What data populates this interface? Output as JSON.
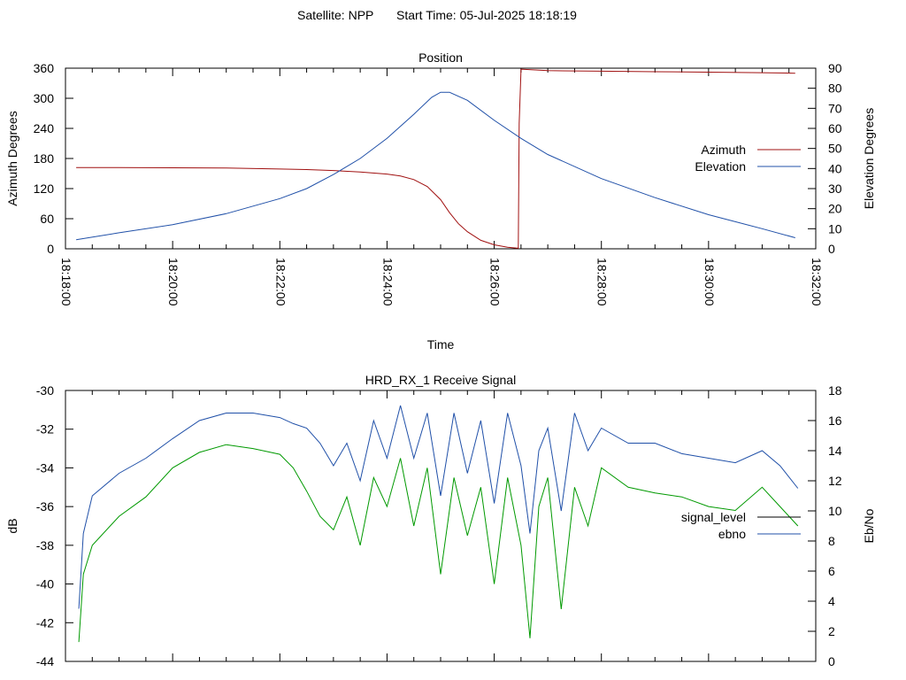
{
  "header": {
    "satellite": "Satellite: NPP",
    "start_time": "Start Time: 05-Jul-2025 18:18:19"
  },
  "colors": {
    "azimuth": "#a01010",
    "elevation": "#2050a8",
    "signal_level": "#000000",
    "signal_level_plotted": "#009900",
    "ebno": "#2050a8"
  },
  "chart_data": [
    {
      "type": "line",
      "title": "Position",
      "xlabel": "Time",
      "ylabel": "Azimuth Degrees",
      "y2label": "Elevation Degrees",
      "x_ticks": [
        "18:18:00",
        "18:20:00",
        "18:22:00",
        "18:24:00",
        "18:26:00",
        "18:28:00",
        "18:30:00",
        "18:32:00"
      ],
      "y_ticks": [
        "0",
        "60",
        "120",
        "180",
        "240",
        "300",
        "360"
      ],
      "y2_ticks": [
        "0",
        "10",
        "20",
        "30",
        "40",
        "50",
        "60",
        "70",
        "80",
        "90"
      ],
      "xlim": [
        "18:18:00",
        "18:32:00"
      ],
      "ylim": [
        0,
        360
      ],
      "y2lim": [
        0,
        90
      ],
      "legend": "right",
      "grid": false,
      "series": [
        {
          "name": "Azimuth",
          "axis": "y",
          "x": [
            "18:18:12",
            "18:19:00",
            "18:20:00",
            "18:21:00",
            "18:22:00",
            "18:22:30",
            "18:23:00",
            "18:23:30",
            "18:24:00",
            "18:24:15",
            "18:24:30",
            "18:24:45",
            "18:25:00",
            "18:25:10",
            "18:25:20",
            "18:25:30",
            "18:25:45",
            "18:26:00",
            "18:26:15",
            "18:26:27",
            "18:26:28",
            "18:26:30",
            "18:27:00",
            "18:28:00",
            "18:29:00",
            "18:30:00",
            "18:31:00",
            "18:31:37"
          ],
          "y": [
            162,
            162,
            161.5,
            161,
            159,
            158,
            156,
            153,
            149,
            145,
            138,
            124,
            98,
            72,
            50,
            34,
            17,
            8,
            3,
            1,
            250,
            358,
            355,
            354,
            353,
            352,
            351,
            350
          ]
        },
        {
          "name": "Elevation",
          "axis": "y2",
          "x": [
            "18:18:12",
            "18:19:00",
            "18:20:00",
            "18:21:00",
            "18:22:00",
            "18:22:30",
            "18:23:00",
            "18:23:30",
            "18:24:00",
            "18:24:30",
            "18:24:50",
            "18:25:00",
            "18:25:10",
            "18:25:30",
            "18:26:00",
            "18:26:30",
            "18:27:00",
            "18:28:00",
            "18:29:00",
            "18:30:00",
            "18:31:00",
            "18:31:37"
          ],
          "y": [
            4.5,
            8,
            12,
            17.5,
            25,
            30,
            37,
            45,
            55,
            67,
            75.5,
            78,
            78,
            74,
            64,
            55,
            47,
            35,
            25.5,
            17,
            10,
            5.5
          ]
        }
      ]
    },
    {
      "type": "line",
      "title": "HRD_RX_1 Receive Signal",
      "ylabel": "dB",
      "y2label": "Eb/No",
      "y_ticks": [
        "-44",
        "-42",
        "-40",
        "-38",
        "-36",
        "-34",
        "-32",
        "-30"
      ],
      "y2_ticks": [
        "0",
        "2",
        "4",
        "6",
        "8",
        "10",
        "12",
        "14",
        "16",
        "18"
      ],
      "xlim": [
        "18:18:00",
        "18:32:00"
      ],
      "ylim": [
        -44,
        -30
      ],
      "y2lim": [
        0,
        18
      ],
      "legend": "right",
      "grid": false,
      "series": [
        {
          "name": "signal_level",
          "axis": "y",
          "x": [
            "18:18:15",
            "18:18:20",
            "18:18:30",
            "18:19:00",
            "18:19:30",
            "18:20:00",
            "18:20:30",
            "18:21:00",
            "18:21:30",
            "18:22:00",
            "18:22:15",
            "18:22:30",
            "18:22:45",
            "18:23:00",
            "18:23:15",
            "18:23:30",
            "18:23:45",
            "18:24:00",
            "18:24:15",
            "18:24:30",
            "18:24:45",
            "18:25:00",
            "18:25:15",
            "18:25:30",
            "18:25:45",
            "18:26:00",
            "18:26:15",
            "18:26:30",
            "18:26:40",
            "18:26:50",
            "18:27:00",
            "18:27:15",
            "18:27:30",
            "18:27:45",
            "18:28:00",
            "18:28:30",
            "18:29:00",
            "18:29:30",
            "18:30:00",
            "18:30:30",
            "18:31:00",
            "18:31:20",
            "18:31:40"
          ],
          "y": [
            -43,
            -39.5,
            -38,
            -36.5,
            -35.5,
            -34,
            -33.2,
            -32.8,
            -33,
            -33.3,
            -34,
            -35.2,
            -36.5,
            -37.2,
            -35.5,
            -38,
            -34.5,
            -36,
            -33.5,
            -37,
            -34,
            -39.5,
            -34.5,
            -37.5,
            -35,
            -40,
            -34.5,
            -38,
            -42.8,
            -36,
            -34.5,
            -41.3,
            -35,
            -37,
            -34,
            -35,
            -35.3,
            -35.5,
            -36,
            -36.2,
            -35,
            -36,
            -37
          ]
        },
        {
          "name": "ebno",
          "axis": "y2",
          "x": [
            "18:18:15",
            "18:18:20",
            "18:18:30",
            "18:19:00",
            "18:19:30",
            "18:20:00",
            "18:20:30",
            "18:21:00",
            "18:21:30",
            "18:22:00",
            "18:22:15",
            "18:22:30",
            "18:22:45",
            "18:23:00",
            "18:23:15",
            "18:23:30",
            "18:23:45",
            "18:24:00",
            "18:24:15",
            "18:24:30",
            "18:24:45",
            "18:25:00",
            "18:25:15",
            "18:25:30",
            "18:25:45",
            "18:26:00",
            "18:26:15",
            "18:26:30",
            "18:26:40",
            "18:26:50",
            "18:27:00",
            "18:27:15",
            "18:27:30",
            "18:27:45",
            "18:28:00",
            "18:28:30",
            "18:29:00",
            "18:29:30",
            "18:30:00",
            "18:30:30",
            "18:31:00",
            "18:31:20",
            "18:31:40"
          ],
          "y": [
            3.5,
            8.5,
            11,
            12.5,
            13.5,
            14.8,
            16,
            16.5,
            16.5,
            16.2,
            15.8,
            15.5,
            14.5,
            13,
            14.5,
            12,
            16,
            13.5,
            17,
            13.5,
            16.5,
            11,
            16.5,
            12.5,
            16,
            10.5,
            16.5,
            13,
            8.5,
            14,
            15.5,
            10,
            16.5,
            14,
            15.5,
            14.5,
            14.5,
            13.8,
            13.5,
            13.2,
            14,
            13,
            11.5
          ]
        }
      ]
    }
  ]
}
